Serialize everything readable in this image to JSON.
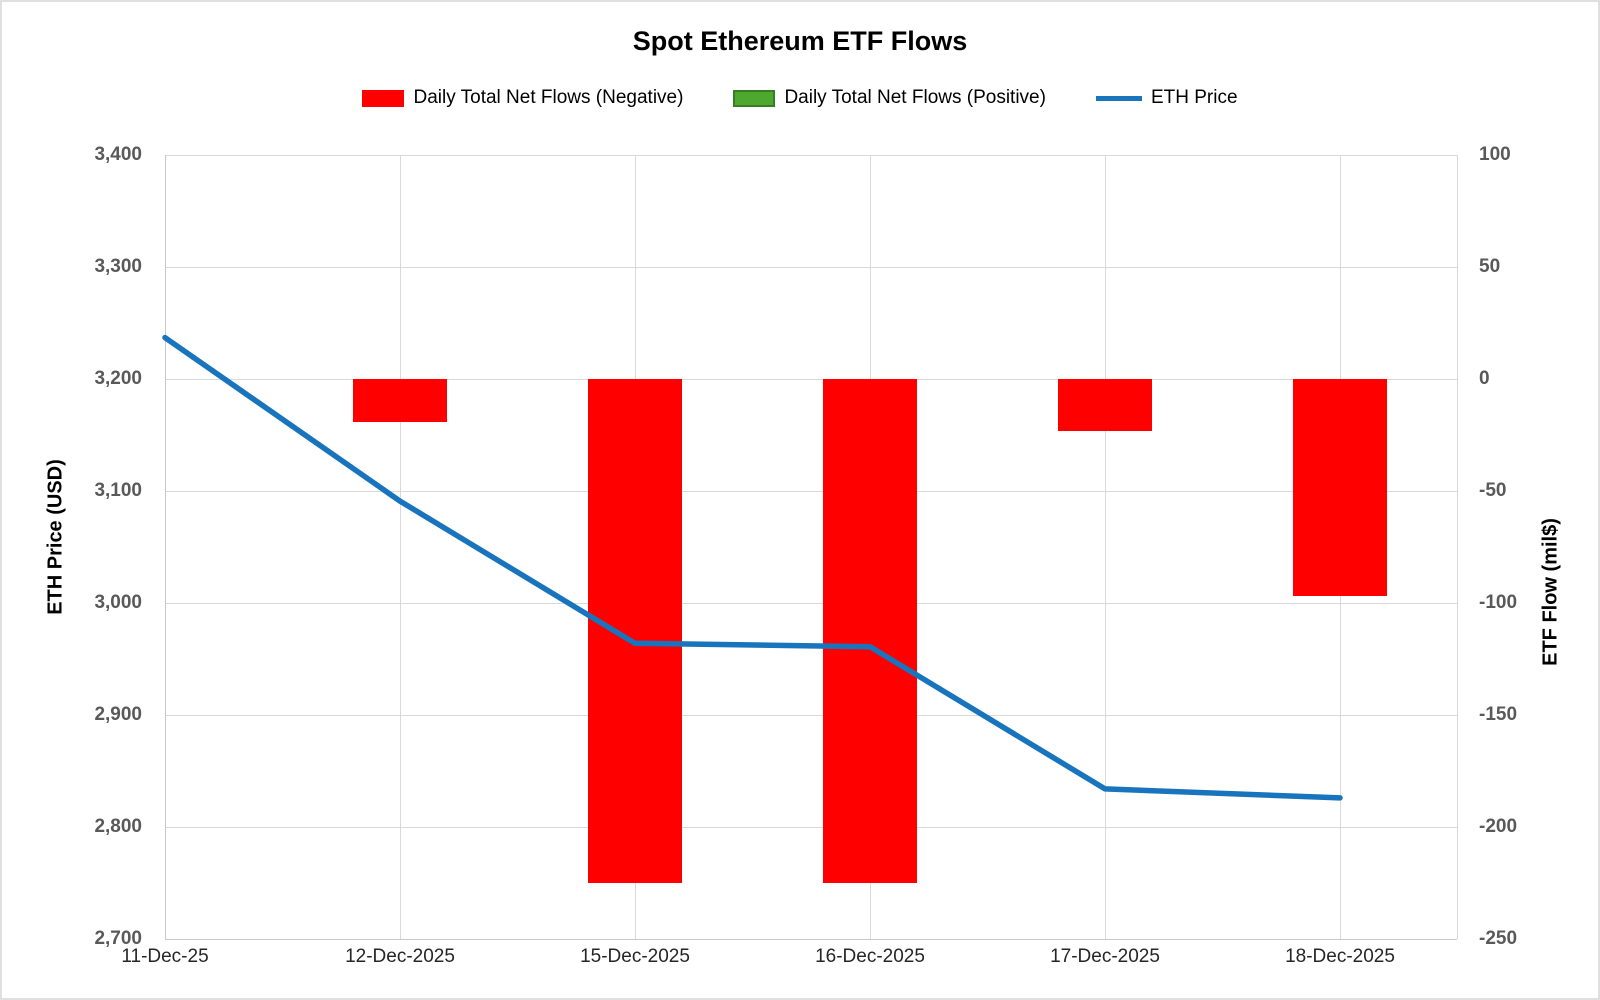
{
  "chart_data": {
    "type": "combo-bar-line",
    "title": "Spot Ethereum ETF Flows",
    "categories": [
      "11-Dec-25",
      "12-Dec-2025",
      "15-Dec-2025",
      "16-Dec-2025",
      "17-Dec-2025",
      "18-Dec-2025"
    ],
    "series": [
      {
        "name": "Daily Total Net Flows (Negative)",
        "type": "bar",
        "axis": "right",
        "color": "#ff0000",
        "values": [
          null,
          -19,
          -225,
          -225,
          -23,
          -97
        ]
      },
      {
        "name": "Daily Total Net Flows (Positive)",
        "type": "bar",
        "axis": "right",
        "color": "#4ea72e",
        "border_color": "#377d22",
        "values": [
          null,
          null,
          null,
          null,
          null,
          null
        ]
      },
      {
        "name": "ETH Price",
        "type": "line",
        "axis": "left",
        "color": "#1874bc",
        "values": [
          3237,
          3091,
          2964,
          2961,
          2834,
          2826
        ]
      }
    ],
    "left_axis": {
      "title": "ETH Price (USD)",
      "min": 2700,
      "max": 3400,
      "step": 100,
      "tick_labels": [
        "3,400",
        "3,300",
        "3,200",
        "3,100",
        "3,000",
        "2,900",
        "2,800",
        "2,700"
      ]
    },
    "right_axis": {
      "title": "ETF Flow (mil$)",
      "min": -250,
      "max": 100,
      "step": 50,
      "tick_labels": [
        "100",
        "50",
        "0",
        "-50",
        "-100",
        "-150",
        "-200",
        "-250"
      ]
    },
    "grid": true,
    "legend_position": "top",
    "colors": {
      "gridline": "#d9d9d9",
      "axis_line": "#c9c9c9",
      "tick_text": "#595959",
      "category_text": "#262626",
      "title_text": "#000000"
    }
  }
}
